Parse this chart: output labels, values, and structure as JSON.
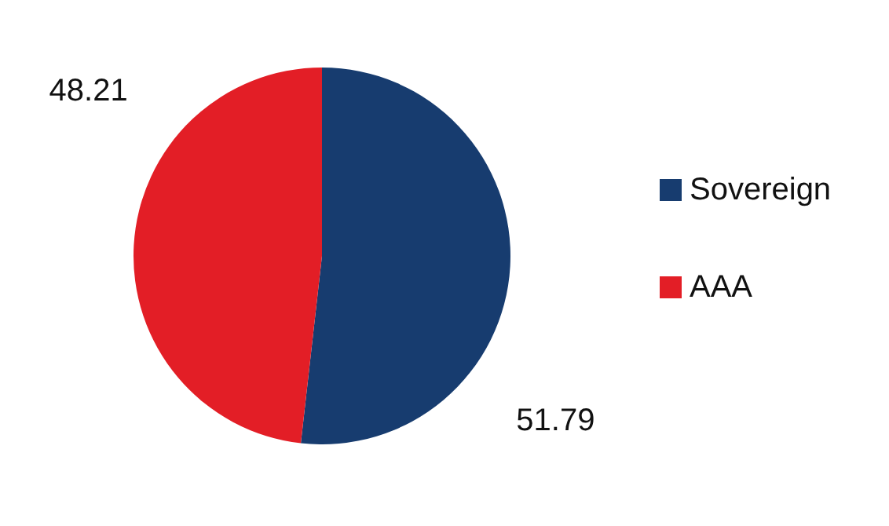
{
  "chart_data": {
    "type": "pie",
    "categories": [
      "Sovereign",
      "AAA"
    ],
    "values": [
      51.79,
      48.21
    ],
    "colors": [
      "#173c6f",
      "#e31e26"
    ],
    "data_labels": true,
    "legend": "right"
  }
}
